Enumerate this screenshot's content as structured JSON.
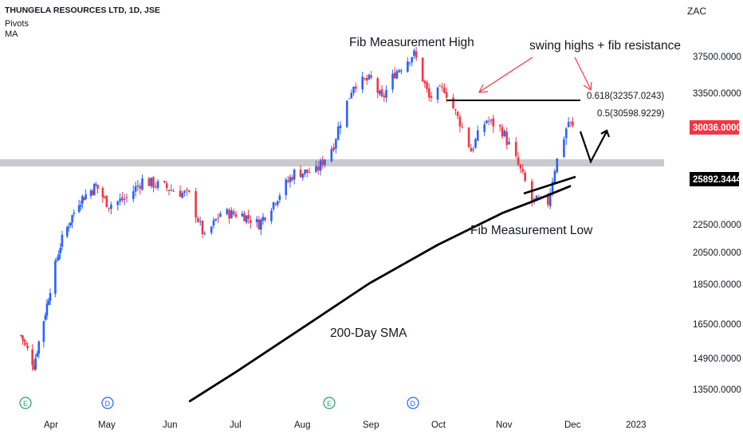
{
  "header": {
    "title": "THUNGELA RESOURCES LTD, 1D, JSE",
    "indicators": [
      "Pivots",
      "MA"
    ],
    "currency": "ZAC"
  },
  "colors": {
    "up": "#2962ff",
    "down": "#f23645",
    "sma": "#000000",
    "band": "#c9cacd",
    "arrow": "#f23645",
    "price_badge": "#f23645",
    "level_badge": "#000000"
  },
  "chart_data": {
    "type": "candlestick",
    "ylabel": "ZAC",
    "y_ticks": [
      "37500.0000",
      "33500.0000",
      "22500.0000",
      "20500.0000",
      "18500.0000",
      "16500.0000",
      "14900.0000",
      "13500.0000"
    ],
    "x_ticks": [
      "Apr",
      "May",
      "Jun",
      "Jul",
      "Aug",
      "Sep",
      "Oct",
      "Nov",
      "Dec",
      "2023"
    ],
    "last_price": "30036.0000",
    "support_level": "25892.3444",
    "fib_levels": [
      {
        "label": "0.618(32357.0243)",
        "value": 32357.0243
      },
      {
        "label": "0.5(30598.9229)",
        "value": 30598.9229
      }
    ],
    "annotations": [
      "Fib Measurement High",
      "swing highs + fib resistance",
      "Fib Measurement Low",
      "200-Day SMA"
    ],
    "sma_200": [
      {
        "date": "2022-06-10",
        "value": 13000
      },
      {
        "date": "2022-07-01",
        "value": 14300
      },
      {
        "date": "2022-08-01",
        "value": 16300
      },
      {
        "date": "2022-09-01",
        "value": 18600
      },
      {
        "date": "2022-10-03",
        "value": 21100
      },
      {
        "date": "2022-11-01",
        "value": 23400
      },
      {
        "date": "2022-11-15",
        "value": 24300
      },
      {
        "date": "2022-12-01",
        "value": 25400
      }
    ],
    "price_path": [
      {
        "date": "2022-03-14",
        "value": 16000
      },
      {
        "date": "2022-03-22",
        "value": 14600
      },
      {
        "date": "2022-03-30",
        "value": 17500
      },
      {
        "date": "2022-04-08",
        "value": 21500
      },
      {
        "date": "2022-04-18",
        "value": 24300
      },
      {
        "date": "2022-04-28",
        "value": 25400
      },
      {
        "date": "2022-05-05",
        "value": 24000
      },
      {
        "date": "2022-05-13",
        "value": 24500
      },
      {
        "date": "2022-05-20",
        "value": 25800
      },
      {
        "date": "2022-05-30",
        "value": 25300
      },
      {
        "date": "2022-06-10",
        "value": 24700
      },
      {
        "date": "2022-06-17",
        "value": 21600
      },
      {
        "date": "2022-06-24",
        "value": 23400
      },
      {
        "date": "2022-07-04",
        "value": 23300
      },
      {
        "date": "2022-07-12",
        "value": 22600
      },
      {
        "date": "2022-07-20",
        "value": 24400
      },
      {
        "date": "2022-07-29",
        "value": 26400
      },
      {
        "date": "2022-08-08",
        "value": 26500
      },
      {
        "date": "2022-08-16",
        "value": 28700
      },
      {
        "date": "2022-08-25",
        "value": 34500
      },
      {
        "date": "2022-09-02",
        "value": 35000
      },
      {
        "date": "2022-09-07",
        "value": 32800
      },
      {
        "date": "2022-09-13",
        "value": 35700
      },
      {
        "date": "2022-09-22",
        "value": 37900
      },
      {
        "date": "2022-09-29",
        "value": 33000
      },
      {
        "date": "2022-10-06",
        "value": 34000
      },
      {
        "date": "2022-10-12",
        "value": 31000
      },
      {
        "date": "2022-10-18",
        "value": 28200
      },
      {
        "date": "2022-10-25",
        "value": 30800
      },
      {
        "date": "2022-11-01",
        "value": 29800
      },
      {
        "date": "2022-11-08",
        "value": 27000
      },
      {
        "date": "2022-11-14",
        "value": 24300
      },
      {
        "date": "2022-11-21",
        "value": 24200
      },
      {
        "date": "2022-11-24",
        "value": 26800
      },
      {
        "date": "2022-11-30",
        "value": 30600
      },
      {
        "date": "2022-12-02",
        "value": 30036
      }
    ]
  }
}
